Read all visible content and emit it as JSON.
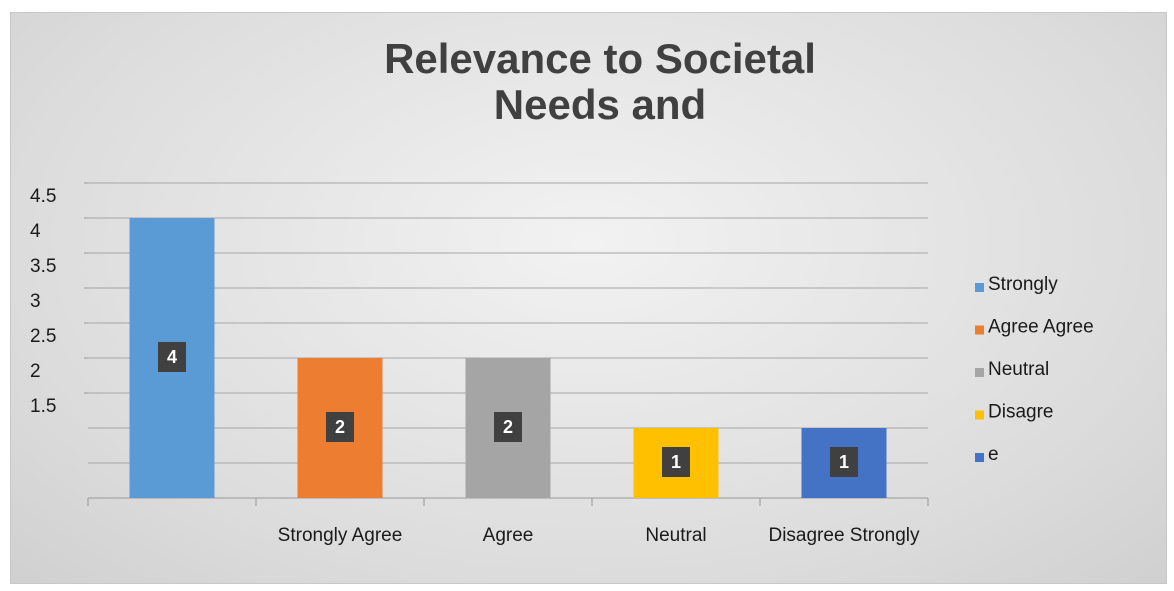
{
  "chart_data": {
    "type": "bar",
    "title": "Relevance to Societal Needs and",
    "categories": [
      null,
      "Strongly Agree",
      "Agree",
      "Neutral",
      "Disagree Strongly"
    ],
    "values": [
      4,
      2,
      2,
      1,
      1
    ],
    "colors": [
      "#5b9bd5",
      "#ed7d31",
      "#a5a5a5",
      "#ffc000",
      "#4472c4"
    ],
    "ylim": [
      0,
      4.5
    ],
    "yticks": [
      4.5,
      4,
      3.5,
      3,
      2.5,
      2,
      1.5
    ],
    "grid": true,
    "legend_position": "right",
    "legend": [
      {
        "name": "Strongly",
        "color": "#5b9bd5"
      },
      {
        "name": "Agree Agree",
        "color": "#ed7d31"
      },
      {
        "name": "Neutral",
        "color": "#a5a5a5"
      },
      {
        "name": "Disagre",
        "color": "#ffc000"
      },
      {
        "name": "e",
        "color": "#4472c4"
      }
    ]
  }
}
